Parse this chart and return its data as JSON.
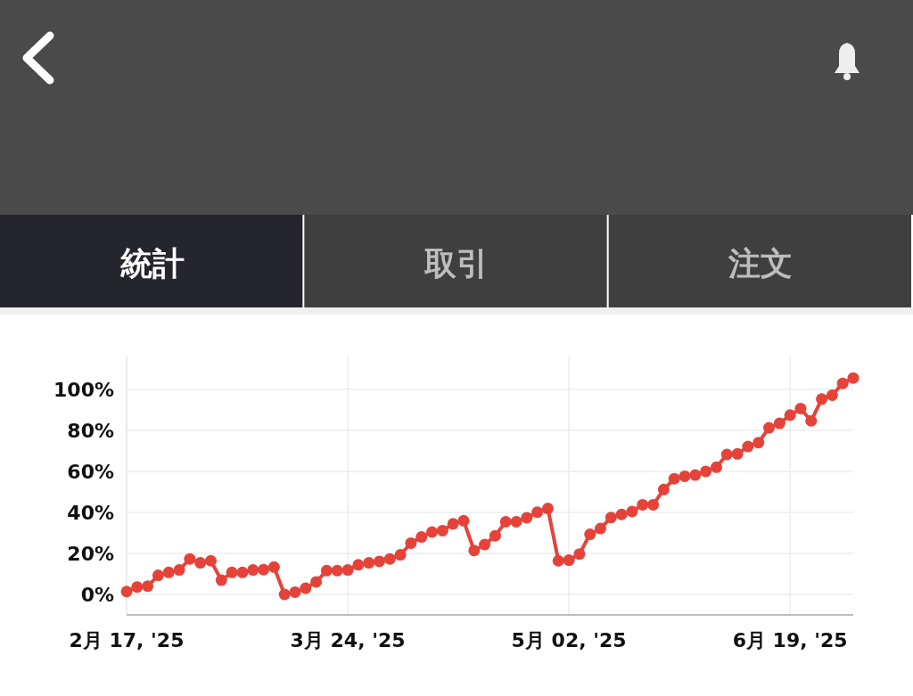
{
  "chart_data": {
    "type": "line",
    "annotations": [
      "統計",
      "取引",
      "注文"
    ],
    "categories": [
      "2月 17, '25",
      null,
      null,
      null,
      null,
      null,
      null,
      null,
      null,
      null,
      null,
      null,
      null,
      null,
      null,
      null,
      null,
      null,
      null,
      null,
      null,
      "3月 24, '25",
      null,
      null,
      null,
      null,
      null,
      null,
      null,
      null,
      null,
      null,
      null,
      null,
      null,
      null,
      null,
      null,
      null,
      null,
      null,
      null,
      "5月 02, '25",
      null,
      null,
      null,
      null,
      null,
      null,
      null,
      null,
      null,
      null,
      null,
      null,
      null,
      null,
      null,
      null,
      null,
      null,
      null,
      null,
      "6月 19, '25",
      null,
      null,
      null,
      null,
      null,
      null
    ],
    "series": [
      {
        "color": "#e5433a",
        "values": [
          1.4,
          3.6,
          4,
          9.3,
          10.7,
          11.9,
          17.3,
          15.4,
          16.4,
          6.9,
          10.7,
          10.7,
          11.9,
          12.1,
          13.3,
          0,
          1.1,
          3,
          6.1,
          11.6,
          11.6,
          11.9,
          14.4,
          15.4,
          16.1,
          17.3,
          19.3,
          25,
          28,
          30.4,
          31.1,
          34.4,
          35.9,
          21.4,
          24.3,
          28.6,
          35.4,
          35.4,
          37.4,
          40.1,
          41.9,
          16.4,
          16.7,
          19.7,
          29.3,
          32.1,
          37.5,
          39,
          40.4,
          43.7,
          43.7,
          51.1,
          56.4,
          57.6,
          58.2,
          60,
          62,
          68.2,
          68.5,
          72.1,
          74,
          81.2,
          83.4,
          87.4,
          90.6,
          84.6,
          95.2,
          97.1,
          102.9,
          105.5
        ]
      }
    ],
    "ylim": [
      -10,
      116
    ],
    "yticks": [
      {
        "value": 0,
        "label": "0%"
      },
      {
        "value": 20,
        "label": "20%"
      },
      {
        "value": 40,
        "label": "40%"
      },
      {
        "value": 60,
        "label": "60%"
      },
      {
        "value": 80,
        "label": "80%"
      },
      {
        "value": 100,
        "label": "100%"
      }
    ],
    "grid": true,
    "marker": "circle",
    "line_style": "solid"
  }
}
